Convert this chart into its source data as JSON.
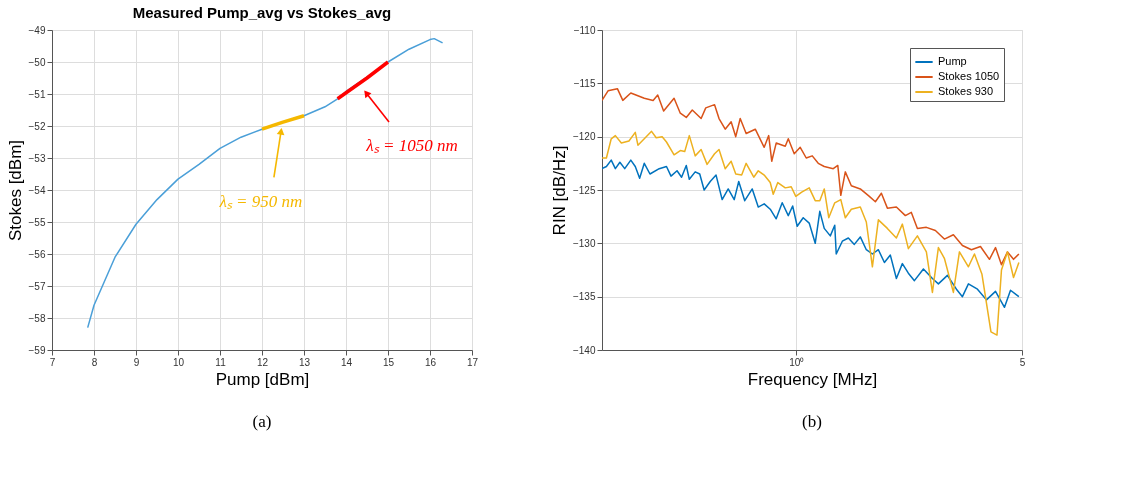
{
  "chart_data": [
    {
      "type": "line",
      "title": "Measured Pump_avg vs Stokes_avg",
      "xlabel": "Pump [dBm]",
      "ylabel": "Stokes [dBm]",
      "xlim": [
        7,
        17
      ],
      "ylim": [
        -59,
        -49
      ],
      "xticks": [
        7,
        8,
        9,
        10,
        11,
        12,
        13,
        14,
        15,
        16,
        17
      ],
      "yticks": [
        -59,
        -58,
        -57,
        -56,
        -55,
        -54,
        -53,
        -52,
        -51,
        -50,
        -49
      ],
      "grid": true,
      "series": [
        {
          "color": "#4a9fd8",
          "x": [
            7.85,
            8.0,
            8.5,
            9.0,
            9.5,
            10.0,
            10.5,
            11.0,
            11.5,
            12.0,
            12.5,
            13.0,
            13.5,
            13.8,
            14.0,
            14.5,
            15.0,
            15.5,
            16.0,
            16.1,
            16.3
          ],
          "values": [
            -58.3,
            -57.6,
            -56.1,
            -55.07,
            -54.3,
            -53.66,
            -53.2,
            -52.7,
            -52.35,
            -52.1,
            -51.88,
            -51.68,
            -51.4,
            -51.15,
            -50.92,
            -50.47,
            -50.0,
            -49.6,
            -49.3,
            -49.27,
            -49.4
          ]
        },
        {
          "color": "#f5b800",
          "x": [
            12.0,
            12.5,
            13.0
          ],
          "values": [
            -52.1,
            -51.88,
            -51.68
          ]
        },
        {
          "color": "#ff0000",
          "x": [
            13.8,
            14.5,
            15.0
          ],
          "values": [
            -51.15,
            -50.5,
            -50.0
          ]
        }
      ],
      "annotations": [
        {
          "text": "λₛ = 950 nm",
          "x": 12.45,
          "y": -52.2
        },
        {
          "text": "λₛ = 1050 nm",
          "x": 14.5,
          "y": -51.0
        },
        "(a)"
      ]
    },
    {
      "type": "line",
      "xlabel": "Frequency [MHz]",
      "ylabel": "RIN [dB/Hz]",
      "log": "x",
      "xlim": [
        0.25,
        5
      ],
      "ylim": [
        -140,
        -110
      ],
      "xticks": [
        {
          "value": 1,
          "label": "10⁰"
        },
        5
      ],
      "yticks": [
        -140,
        -135,
        -130,
        -125,
        -120,
        -115,
        -110
      ],
      "grid": true,
      "legend": "top right",
      "series": [
        {
          "name": "Pump",
          "color": "#0072bd",
          "x": [
            0.25,
            0.258,
            0.267,
            0.275,
            0.284,
            0.294,
            0.307,
            0.317,
            0.327,
            0.338,
            0.352,
            0.376,
            0.396,
            0.409,
            0.427,
            0.441,
            0.456,
            0.466,
            0.486,
            0.502,
            0.518,
            0.541,
            0.564,
            0.589,
            0.615,
            0.642,
            0.663,
            0.692,
            0.73,
            0.762,
            0.795,
            0.83,
            0.866,
            0.904,
            0.944,
            0.974,
            1.006,
            1.05,
            1.096,
            1.144,
            1.182,
            1.22,
            1.274,
            1.315,
            1.329,
            1.388,
            1.449,
            1.512,
            1.578,
            1.647,
            1.72,
            1.795,
            1.874,
            1.955,
            2.041,
            2.13,
            2.223,
            2.321,
            2.475,
            2.639,
            2.754,
            2.937,
            3.132,
            3.269,
            3.412,
            3.639,
            3.88,
            4.139,
            4.413,
            4.607,
            4.89
          ],
          "values": [
            -123.0,
            -122.8,
            -122.2,
            -123.0,
            -122.4,
            -123.0,
            -122.2,
            -122.8,
            -123.9,
            -122.5,
            -123.5,
            -123.0,
            -122.8,
            -123.7,
            -123.2,
            -123.8,
            -122.7,
            -124.0,
            -123.3,
            -123.5,
            -125.0,
            -124.2,
            -123.6,
            -125.9,
            -124.9,
            -125.9,
            -124.2,
            -126.0,
            -124.9,
            -126.6,
            -126.3,
            -126.8,
            -127.7,
            -126.2,
            -127.4,
            -126.5,
            -128.4,
            -127.6,
            -128.1,
            -130.0,
            -127.0,
            -128.6,
            -129.3,
            -128.3,
            -131.0,
            -129.8,
            -129.5,
            -130.1,
            -129.4,
            -130.6,
            -131.0,
            -130.6,
            -131.8,
            -131.1,
            -133.3,
            -131.9,
            -132.8,
            -133.5,
            -132.4,
            -133.3,
            -133.8,
            -133.0,
            -134.3,
            -135.0,
            -133.8,
            -134.3,
            -135.3,
            -134.5,
            -136.0,
            -134.4,
            -135.0
          ]
        },
        {
          "name": "Stokes 1050",
          "color": "#d95319",
          "x": [
            0.25,
            0.261,
            0.279,
            0.29,
            0.307,
            0.338,
            0.36,
            0.372,
            0.388,
            0.418,
            0.437,
            0.456,
            0.476,
            0.507,
            0.524,
            0.558,
            0.576,
            0.602,
            0.628,
            0.649,
            0.67,
            0.699,
            0.746,
            0.795,
            0.821,
            0.839,
            0.866,
            0.924,
            0.944,
            0.985,
            1.028,
            1.073,
            1.12,
            1.169,
            1.22,
            1.301,
            1.344,
            1.373,
            1.418,
            1.48,
            1.578,
            1.683,
            1.757,
            1.834,
            1.914,
            2.041,
            2.176,
            2.271,
            2.371,
            2.528,
            2.696,
            2.874,
            3.065,
            3.269,
            3.486,
            3.718,
            3.964,
            4.139,
            4.319,
            4.508,
            4.707,
            4.89
          ],
          "values": [
            -116.6,
            -115.7,
            -115.5,
            -116.6,
            -115.9,
            -116.4,
            -116.6,
            -116.1,
            -117.6,
            -116.4,
            -117.8,
            -118.2,
            -117.5,
            -118.3,
            -117.3,
            -117.0,
            -118.3,
            -119.3,
            -118.6,
            -120.0,
            -118.3,
            -119.7,
            -119.3,
            -121.0,
            -119.9,
            -122.3,
            -120.6,
            -120.9,
            -120.2,
            -121.6,
            -121.0,
            -122.0,
            -121.8,
            -122.5,
            -122.8,
            -123.0,
            -122.7,
            -125.5,
            -123.3,
            -124.6,
            -124.9,
            -125.6,
            -126.1,
            -125.3,
            -126.7,
            -126.6,
            -127.4,
            -127.1,
            -128.6,
            -128.5,
            -128.8,
            -129.6,
            -129.2,
            -130.2,
            -130.6,
            -130.3,
            -131.5,
            -130.4,
            -132.0,
            -130.8,
            -131.5,
            -131.0
          ]
        },
        {
          "name": "Stokes 930",
          "color": "#edb120",
          "x": [
            0.25,
            0.258,
            0.267,
            0.275,
            0.287,
            0.303,
            0.317,
            0.323,
            0.338,
            0.356,
            0.368,
            0.384,
            0.396,
            0.418,
            0.437,
            0.451,
            0.466,
            0.486,
            0.507,
            0.529,
            0.558,
            0.576,
            0.602,
            0.628,
            0.649,
            0.677,
            0.699,
            0.738,
            0.762,
            0.795,
            0.83,
            0.848,
            0.876,
            0.924,
            0.964,
            0.996,
            1.039,
            1.096,
            1.144,
            1.182,
            1.22,
            1.26,
            1.315,
            1.373,
            1.418,
            1.48,
            1.578,
            1.647,
            1.72,
            1.795,
            1.914,
            2.041,
            2.13,
            2.223,
            2.371,
            2.528,
            2.639,
            2.754,
            2.874,
            3.065,
            3.2,
            3.412,
            3.562,
            3.758,
            4.007,
            4.183,
            4.319,
            4.508,
            4.707,
            4.89
          ],
          "values": [
            -122.0,
            -122.0,
            -120.2,
            -119.9,
            -120.6,
            -120.4,
            -119.6,
            -120.8,
            -120.2,
            -119.5,
            -120.1,
            -120.0,
            -120.5,
            -121.7,
            -121.3,
            -121.4,
            -119.9,
            -121.8,
            -121.2,
            -122.6,
            -121.6,
            -121.2,
            -123.0,
            -122.3,
            -123.5,
            -123.6,
            -122.5,
            -123.8,
            -123.2,
            -123.6,
            -124.3,
            -125.4,
            -124.3,
            -124.8,
            -124.7,
            -125.6,
            -125.2,
            -124.8,
            -126.0,
            -126.0,
            -124.9,
            -127.6,
            -126.2,
            -125.9,
            -127.6,
            -126.8,
            -126.6,
            -128.0,
            -132.2,
            -127.8,
            -128.6,
            -129.5,
            -128.2,
            -130.5,
            -129.3,
            -130.8,
            -134.6,
            -130.4,
            -131.4,
            -134.6,
            -130.8,
            -132.2,
            -131.0,
            -132.9,
            -138.3,
            -138.6,
            -132.5,
            -130.8,
            -133.2,
            -131.8
          ]
        }
      ],
      "annotations": [
        "(b)"
      ]
    }
  ]
}
